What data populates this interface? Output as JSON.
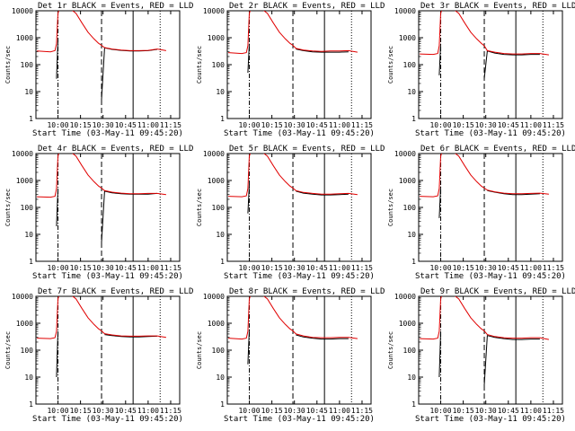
{
  "chart_data": [
    {
      "type": "line",
      "title": "Det 1r BLACK = Events, RED = LLD",
      "xlabel": "Start Time (03-May-11 09:45:20)",
      "ylabel": "Counts/sec",
      "y_scale": "log",
      "ylim": [
        1,
        10000
      ],
      "x_tick_labels": [
        "10:00",
        "10:15",
        "10:30",
        "10:45",
        "11:00",
        "11:15"
      ],
      "y_tick_labels": [
        "1",
        "10",
        "100",
        "1000",
        "10000"
      ],
      "x": [
        "09:46",
        "09:55",
        "09:58",
        "09:59",
        "10:00",
        "10:01",
        "10:02",
        "10:05",
        "10:08",
        "10:12",
        "10:16",
        "10:20",
        "10:24",
        "10:27",
        "10:29",
        "10:31",
        "10:36",
        "10:42",
        "10:48",
        "10:54",
        "11:00",
        "11:06",
        "11:12"
      ],
      "series": [
        {
          "name": "Events",
          "color": "#000000",
          "values": [
            null,
            null,
            null,
            30,
            800,
            null,
            null,
            null,
            null,
            null,
            null,
            null,
            null,
            null,
            5,
            420,
            370,
            340,
            320,
            320,
            330,
            370,
            null
          ]
        },
        {
          "name": "LLD",
          "color": "#e00000",
          "values": [
            320,
            300,
            330,
            600,
            8000,
            12000,
            12000,
            12000,
            12000,
            8000,
            3500,
            1600,
            900,
            620,
            520,
            430,
            380,
            350,
            330,
            330,
            340,
            380,
            330
          ]
        }
      ]
    },
    {
      "type": "line",
      "title": "Det 2r BLACK = Events, RED = LLD",
      "xlabel": "Start Time (03-May-11 09:45:20)",
      "ylabel": "Counts/sec",
      "y_scale": "log",
      "ylim": [
        1,
        10000
      ],
      "x_tick_labels": [
        "10:00",
        "10:15",
        "10:30",
        "10:45",
        "11:00",
        "11:15"
      ],
      "y_tick_labels": [
        "1",
        "10",
        "100",
        "1000",
        "10000"
      ],
      "x": [
        "09:46",
        "09:55",
        "09:58",
        "09:59",
        "10:00",
        "10:01",
        "10:02",
        "10:05",
        "10:08",
        "10:12",
        "10:16",
        "10:20",
        "10:24",
        "10:27",
        "10:29",
        "10:31",
        "10:36",
        "10:42",
        "10:48",
        "10:54",
        "11:00",
        "11:06",
        "11:12"
      ],
      "series": [
        {
          "name": "Events",
          "color": "#000000",
          "values": [
            null,
            null,
            null,
            50,
            600,
            null,
            null,
            null,
            null,
            null,
            null,
            null,
            null,
            null,
            null,
            380,
            330,
            300,
            290,
            290,
            290,
            300,
            null
          ]
        },
        {
          "name": "LLD",
          "color": "#e00000",
          "values": [
            280,
            260,
            280,
            500,
            8000,
            12000,
            12000,
            12000,
            12000,
            8000,
            3500,
            1600,
            900,
            620,
            520,
            400,
            350,
            320,
            310,
            320,
            320,
            330,
            290
          ]
        }
      ]
    },
    {
      "type": "line",
      "title": "Det 3r BLACK = Events, RED = LLD",
      "xlabel": "Start Time (03-May-11 09:45:20)",
      "ylabel": "Counts/sec",
      "y_scale": "log",
      "ylim": [
        1,
        10000
      ],
      "x_tick_labels": [
        "10:00",
        "10:15",
        "10:30",
        "10:45",
        "11:00",
        "11:15"
      ],
      "y_tick_labels": [
        "1",
        "10",
        "100",
        "1000",
        "10000"
      ],
      "x": [
        "09:46",
        "09:55",
        "09:58",
        "09:59",
        "10:00",
        "10:01",
        "10:02",
        "10:05",
        "10:08",
        "10:12",
        "10:16",
        "10:20",
        "10:24",
        "10:27",
        "10:29",
        "10:31",
        "10:36",
        "10:42",
        "10:48",
        "10:54",
        "11:00",
        "11:06",
        "11:12"
      ],
      "series": [
        {
          "name": "Events",
          "color": "#000000",
          "values": [
            null,
            null,
            null,
            40,
            600,
            null,
            null,
            null,
            null,
            null,
            null,
            null,
            null,
            null,
            30,
            320,
            270,
            240,
            230,
            230,
            240,
            240,
            null
          ]
        },
        {
          "name": "LLD",
          "color": "#e00000",
          "values": [
            250,
            240,
            260,
            500,
            8000,
            12000,
            12000,
            12000,
            12000,
            8000,
            3500,
            1600,
            900,
            620,
            500,
            330,
            290,
            260,
            250,
            250,
            260,
            260,
            230
          ]
        }
      ]
    },
    {
      "type": "line",
      "title": "Det 4r BLACK = Events, RED = LLD",
      "xlabel": "Start Time (03-May-11 09:45:20)",
      "ylabel": "Counts/sec",
      "y_scale": "log",
      "ylim": [
        1,
        10000
      ],
      "x_tick_labels": [
        "10:00",
        "10:15",
        "10:30",
        "10:45",
        "11:00",
        "11:15"
      ],
      "y_tick_labels": [
        "1",
        "10",
        "100",
        "1000",
        "10000"
      ],
      "x": [
        "09:46",
        "09:55",
        "09:58",
        "09:59",
        "10:00",
        "10:01",
        "10:02",
        "10:05",
        "10:08",
        "10:12",
        "10:16",
        "10:20",
        "10:24",
        "10:27",
        "10:29",
        "10:31",
        "10:36",
        "10:42",
        "10:48",
        "10:54",
        "11:00",
        "11:06",
        "11:12"
      ],
      "series": [
        {
          "name": "Events",
          "color": "#000000",
          "values": [
            null,
            null,
            null,
            20,
            500,
            null,
            null,
            null,
            null,
            null,
            null,
            null,
            null,
            null,
            5,
            400,
            350,
            320,
            310,
            310,
            310,
            330,
            null
          ]
        },
        {
          "name": "LLD",
          "color": "#e00000",
          "values": [
            250,
            240,
            260,
            500,
            8000,
            12000,
            12000,
            12000,
            12000,
            8000,
            3500,
            1600,
            900,
            620,
            520,
            420,
            370,
            340,
            320,
            320,
            330,
            330,
            300
          ]
        }
      ]
    },
    {
      "type": "line",
      "title": "Det 5r BLACK = Events, RED = LLD",
      "xlabel": "Start Time (03-May-11 09:45:20)",
      "ylabel": "Counts/sec",
      "y_scale": "log",
      "ylim": [
        1,
        10000
      ],
      "x_tick_labels": [
        "10:00",
        "10:15",
        "10:30",
        "10:45",
        "11:00",
        "11:15"
      ],
      "y_tick_labels": [
        "1",
        "10",
        "100",
        "1000",
        "10000"
      ],
      "x": [
        "09:46",
        "09:55",
        "09:58",
        "09:59",
        "10:00",
        "10:01",
        "10:02",
        "10:05",
        "10:08",
        "10:12",
        "10:16",
        "10:20",
        "10:24",
        "10:27",
        "10:29",
        "10:31",
        "10:36",
        "10:42",
        "10:48",
        "10:54",
        "11:00",
        "11:06",
        "11:12"
      ],
      "series": [
        {
          "name": "Events",
          "color": "#000000",
          "values": [
            null,
            null,
            null,
            60,
            700,
            null,
            null,
            null,
            null,
            null,
            null,
            null,
            null,
            null,
            null,
            400,
            340,
            310,
            290,
            290,
            300,
            310,
            null
          ]
        },
        {
          "name": "LLD",
          "color": "#e00000",
          "values": [
            260,
            250,
            270,
            500,
            8000,
            12000,
            12000,
            12000,
            12000,
            8000,
            3500,
            1600,
            900,
            620,
            520,
            420,
            360,
            330,
            310,
            310,
            320,
            330,
            300
          ]
        }
      ]
    },
    {
      "type": "line",
      "title": "Det 6r BLACK = Events, RED = LLD",
      "xlabel": "Start Time (03-May-11 09:45:20)",
      "ylabel": "Counts/sec",
      "y_scale": "log",
      "ylim": [
        1,
        10000
      ],
      "x_tick_labels": [
        "10:00",
        "10:15",
        "10:30",
        "10:45",
        "11:00",
        "11:15"
      ],
      "y_tick_labels": [
        "1",
        "10",
        "100",
        "1000",
        "10000"
      ],
      "x": [
        "09:46",
        "09:55",
        "09:58",
        "09:59",
        "10:00",
        "10:01",
        "10:02",
        "10:05",
        "10:08",
        "10:12",
        "10:16",
        "10:20",
        "10:24",
        "10:27",
        "10:29",
        "10:31",
        "10:36",
        "10:42",
        "10:48",
        "10:54",
        "11:00",
        "11:06",
        "11:12"
      ],
      "series": [
        {
          "name": "Events",
          "color": "#000000",
          "values": [
            null,
            null,
            null,
            40,
            600,
            null,
            null,
            null,
            null,
            null,
            null,
            null,
            null,
            null,
            null,
            420,
            370,
            320,
            300,
            300,
            310,
            320,
            null
          ]
        },
        {
          "name": "LLD",
          "color": "#e00000",
          "values": [
            260,
            250,
            270,
            500,
            8000,
            12000,
            12000,
            12000,
            12000,
            8000,
            3500,
            1600,
            900,
            620,
            520,
            440,
            380,
            340,
            320,
            320,
            330,
            340,
            310
          ]
        }
      ]
    },
    {
      "type": "line",
      "title": "Det 7r BLACK = Events, RED = LLD",
      "xlabel": "Start Time (03-May-11 09:45:20)",
      "ylabel": "Counts/sec",
      "y_scale": "log",
      "ylim": [
        1,
        10000
      ],
      "x_tick_labels": [
        "10:00",
        "10:15",
        "10:30",
        "10:45",
        "11:00",
        "11:15"
      ],
      "y_tick_labels": [
        "1",
        "10",
        "100",
        "1000",
        "10000"
      ],
      "x": [
        "09:46",
        "09:55",
        "09:58",
        "09:59",
        "10:00",
        "10:01",
        "10:02",
        "10:05",
        "10:08",
        "10:12",
        "10:16",
        "10:20",
        "10:24",
        "10:27",
        "10:29",
        "10:31",
        "10:36",
        "10:42",
        "10:48",
        "10:54",
        "11:00",
        "11:06",
        "11:12"
      ],
      "series": [
        {
          "name": "Events",
          "color": "#000000",
          "values": [
            null,
            null,
            null,
            10,
            500,
            null,
            null,
            null,
            null,
            null,
            null,
            null,
            null,
            null,
            null,
            380,
            350,
            320,
            310,
            310,
            320,
            330,
            null
          ]
        },
        {
          "name": "LLD",
          "color": "#e00000",
          "values": [
            280,
            270,
            290,
            500,
            8000,
            12000,
            12000,
            12000,
            12000,
            8000,
            3500,
            1600,
            900,
            620,
            520,
            410,
            370,
            340,
            330,
            330,
            340,
            340,
            300
          ]
        }
      ]
    },
    {
      "type": "line",
      "title": "Det 8r BLACK = Events, RED = LLD",
      "xlabel": "Start Time (03-May-11 09:45:20)",
      "ylabel": "Counts/sec",
      "y_scale": "log",
      "ylim": [
        1,
        10000
      ],
      "x_tick_labels": [
        "10:00",
        "10:15",
        "10:30",
        "10:45",
        "11:00",
        "11:15"
      ],
      "y_tick_labels": [
        "1",
        "10",
        "100",
        "1000",
        "10000"
      ],
      "x": [
        "09:46",
        "09:55",
        "09:58",
        "09:59",
        "10:00",
        "10:01",
        "10:02",
        "10:05",
        "10:08",
        "10:12",
        "10:16",
        "10:20",
        "10:24",
        "10:27",
        "10:29",
        "10:31",
        "10:36",
        "10:42",
        "10:48",
        "10:54",
        "11:00",
        "11:06",
        "11:12"
      ],
      "series": [
        {
          "name": "Events",
          "color": "#000000",
          "values": [
            null,
            null,
            null,
            30,
            600,
            null,
            null,
            null,
            null,
            null,
            null,
            null,
            null,
            null,
            null,
            370,
            310,
            280,
            260,
            260,
            270,
            270,
            null
          ]
        },
        {
          "name": "LLD",
          "color": "#e00000",
          "values": [
            280,
            260,
            280,
            500,
            8000,
            12000,
            12000,
            12000,
            12000,
            8000,
            3500,
            1600,
            900,
            620,
            520,
            400,
            340,
            300,
            290,
            290,
            300,
            300,
            270
          ]
        }
      ]
    },
    {
      "type": "line",
      "title": "Det 9r BLACK = Events, RED = LLD",
      "xlabel": "Start Time (03-May-11 09:45:20)",
      "ylabel": "Counts/sec",
      "y_scale": "log",
      "ylim": [
        1,
        10000
      ],
      "x_tick_labels": [
        "10:00",
        "10:15",
        "10:30",
        "10:45",
        "11:00",
        "11:15"
      ],
      "y_tick_labels": [
        "1",
        "10",
        "100",
        "1000",
        "10000"
      ],
      "x": [
        "09:46",
        "09:55",
        "09:58",
        "09:59",
        "10:00",
        "10:01",
        "10:02",
        "10:05",
        "10:08",
        "10:12",
        "10:16",
        "10:20",
        "10:24",
        "10:27",
        "10:29",
        "10:31",
        "10:36",
        "10:42",
        "10:48",
        "10:54",
        "11:00",
        "11:06",
        "11:12"
      ],
      "series": [
        {
          "name": "Events",
          "color": "#000000",
          "values": [
            null,
            null,
            null,
            10,
            500,
            null,
            null,
            null,
            null,
            null,
            null,
            null,
            null,
            null,
            5,
            350,
            300,
            270,
            250,
            250,
            260,
            260,
            null
          ]
        },
        {
          "name": "LLD",
          "color": "#e00000",
          "values": [
            270,
            260,
            280,
            500,
            8000,
            12000,
            12000,
            12000,
            12000,
            8000,
            3500,
            1600,
            900,
            620,
            520,
            380,
            320,
            290,
            280,
            280,
            290,
            290,
            250
          ]
        }
      ]
    }
  ]
}
